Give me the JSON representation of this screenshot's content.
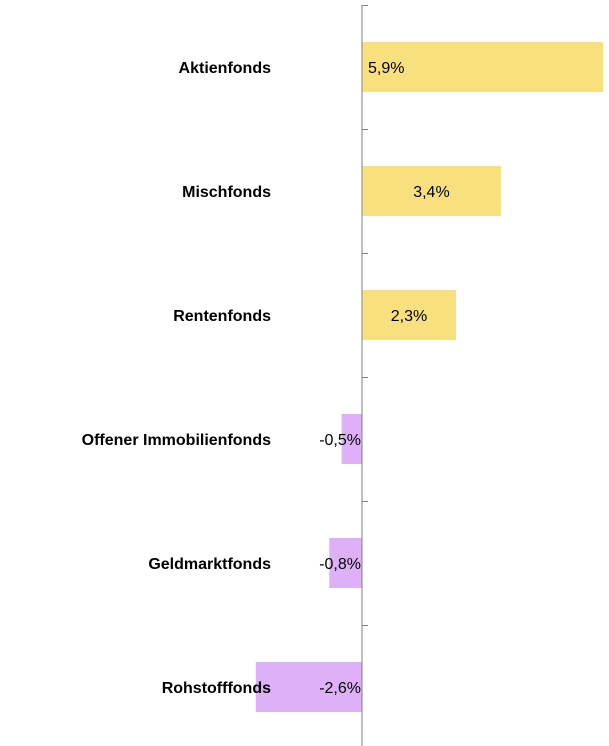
{
  "chart_data": {
    "type": "bar",
    "orientation": "horizontal",
    "categories": [
      "Aktienfonds",
      "Mischfonds",
      "Rentenfonds",
      "Offener Immobilienfonds",
      "Geldmarktfonds",
      "Rohstofffonds"
    ],
    "values": [
      5.9,
      3.4,
      2.3,
      -0.5,
      -0.8,
      -2.6
    ],
    "value_labels": [
      "5,9%",
      "3,4%",
      "2,3%",
      "-0,5%",
      "-0,8%",
      "-2,6%"
    ],
    "title": "",
    "xlabel": "",
    "ylabel": "",
    "xlim": [
      -3.1,
      6.2
    ],
    "grid": false,
    "legend": "none",
    "colors": {
      "positive": "#F8E07E",
      "negative": "#DDB0F8",
      "axis": "#808080"
    }
  }
}
